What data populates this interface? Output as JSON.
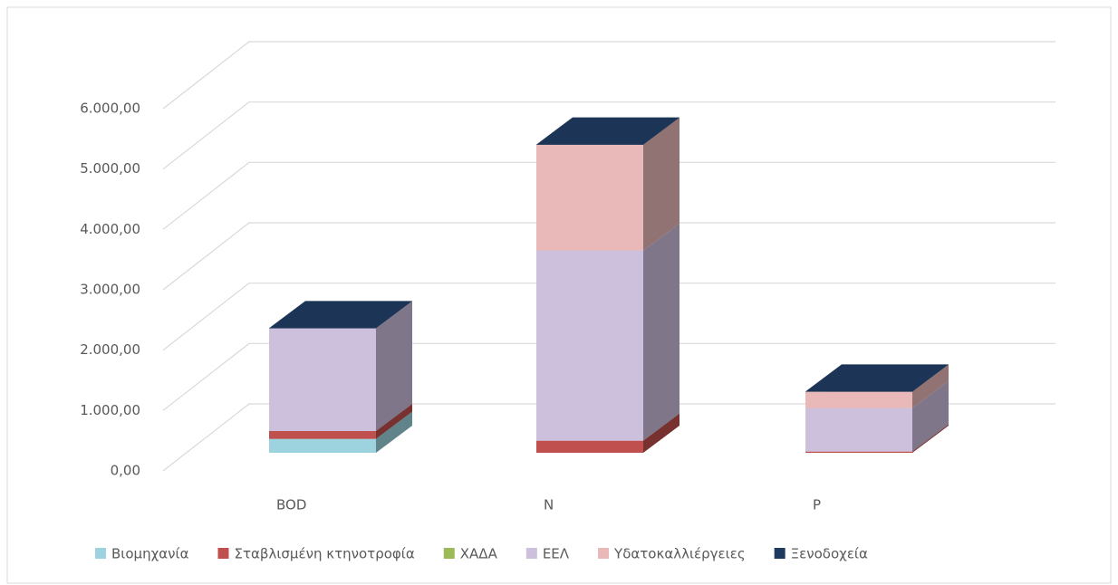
{
  "chart_data": {
    "type": "bar3d_stacked",
    "categories": [
      "BOD",
      "N",
      "P"
    ],
    "series": [
      {
        "name": "Βιομηχανία",
        "color": "#9dd3de",
        "values": [
          230,
          0,
          0
        ]
      },
      {
        "name": "Σταβλισμένη κτηνοτροφία",
        "color": "#c0504d",
        "values": [
          130,
          200,
          20
        ]
      },
      {
        "name": "ΧΑΔΑ",
        "color": "#9bbb59",
        "values": [
          0,
          0,
          0
        ]
      },
      {
        "name": "ΕΕΛ",
        "color": "#cdc0dd",
        "values": [
          1700,
          3150,
          720
        ]
      },
      {
        "name": "Υδατοκαλλιέργειες",
        "color": "#e8b9b8",
        "values": [
          0,
          1750,
          270
        ]
      },
      {
        "name": "Ξενοδοχεία",
        "color": "#1f3a5f",
        "values": [
          5,
          5,
          5
        ]
      }
    ],
    "ylim": [
      0,
      7000
    ],
    "yticks": [
      {
        "value": 0,
        "label": "0,00"
      },
      {
        "value": 1000,
        "label": "1.000,00"
      },
      {
        "value": 2000,
        "label": "2.000,00"
      },
      {
        "value": 3000,
        "label": "3.000,00"
      },
      {
        "value": 4000,
        "label": "4.000,00"
      },
      {
        "value": 5000,
        "label": "5.000,00"
      },
      {
        "value": 6000,
        "label": "6.000,00"
      }
    ],
    "grid": true,
    "legend": "bottom"
  }
}
